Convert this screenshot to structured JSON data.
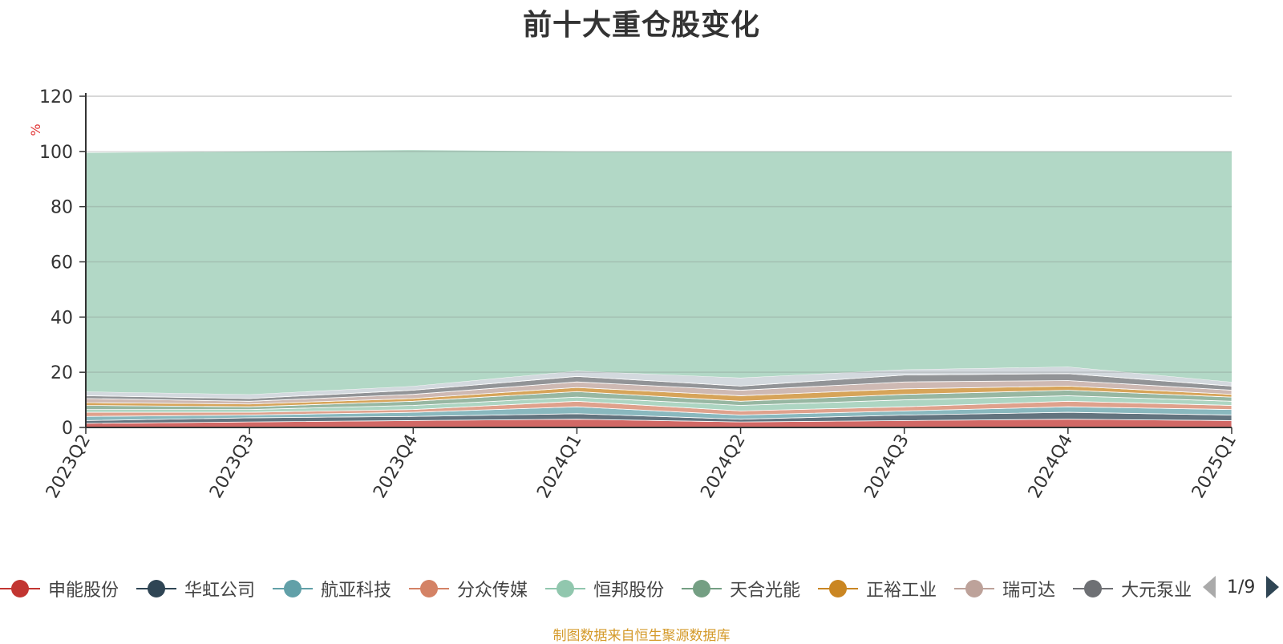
{
  "chart_data": {
    "type": "area",
    "title": "前十大重仓股变化",
    "ylabel": "%",
    "ylim": [
      0,
      120
    ],
    "yticks": [
      0,
      20,
      40,
      60,
      80,
      100,
      120
    ],
    "grid": true,
    "stacked": true,
    "x": [
      "2023Q2",
      "2023Q3",
      "2023Q4",
      "2024Q1",
      "2024Q2",
      "2024Q3",
      "2024Q4",
      "2025Q1"
    ],
    "series": [
      {
        "name": "申能股份",
        "color": "#c23531",
        "values": [
          1.5,
          2.0,
          2.5,
          3.0,
          2.0,
          2.5,
          3.0,
          2.5
        ]
      },
      {
        "name": "华虹公司",
        "color": "#2f4554",
        "values": [
          1.0,
          1.5,
          1.5,
          2.0,
          1.0,
          2.0,
          2.5,
          2.0
        ]
      },
      {
        "name": "航亚科技",
        "color": "#61a0a8",
        "values": [
          1.5,
          1.0,
          1.5,
          2.5,
          1.5,
          1.5,
          2.0,
          2.0
        ]
      },
      {
        "name": "分众传媒",
        "color": "#d48265",
        "values": [
          1.5,
          1.0,
          1.0,
          2.0,
          1.5,
          1.5,
          2.0,
          1.5
        ]
      },
      {
        "name": "恒邦股份",
        "color": "#91c7ae",
        "values": [
          1.0,
          1.0,
          1.5,
          1.5,
          2.0,
          2.5,
          2.0,
          1.5
        ]
      },
      {
        "name": "天合光能",
        "color": "#749f83",
        "values": [
          1.5,
          1.0,
          1.5,
          2.0,
          1.5,
          2.0,
          2.0,
          1.5
        ]
      },
      {
        "name": "正裕工业",
        "color": "#ca8622",
        "values": [
          1.0,
          1.0,
          1.0,
          1.5,
          2.0,
          2.0,
          1.5,
          1.0
        ]
      },
      {
        "name": "瑞可达",
        "color": "#bda29a",
        "values": [
          1.5,
          1.0,
          1.5,
          2.0,
          2.0,
          2.5,
          2.0,
          1.5
        ]
      },
      {
        "name": "大元泵业",
        "color": "#6e7074",
        "values": [
          1.0,
          1.0,
          1.5,
          2.0,
          1.5,
          2.5,
          2.5,
          1.5
        ]
      },
      {
        "name": "",
        "color": "#c4ccd3",
        "values": [
          1.5,
          1.5,
          1.5,
          2.0,
          3.0,
          2.0,
          2.5,
          1.5
        ]
      },
      {
        "name": "",
        "color": "#91c7ae",
        "values": [
          86.5,
          88.0,
          85.5,
          79.5,
          82.0,
          79.0,
          78.0,
          83.5
        ]
      }
    ]
  },
  "legend": {
    "items": [
      {
        "label": "申能股份",
        "color": "#c23531"
      },
      {
        "label": "华虹公司",
        "color": "#2f4554"
      },
      {
        "label": "航亚科技",
        "color": "#61a0a8"
      },
      {
        "label": "分众传媒",
        "color": "#d48265"
      },
      {
        "label": "恒邦股份",
        "color": "#91c7ae"
      },
      {
        "label": "天合光能",
        "color": "#749f83"
      },
      {
        "label": "正裕工业",
        "color": "#ca8622"
      },
      {
        "label": "瑞可达",
        "color": "#bda29a"
      },
      {
        "label": "大元泵业",
        "color": "#6e7074"
      }
    ],
    "page": "1/9"
  },
  "source": "制图数据来自恒生聚源数据库"
}
